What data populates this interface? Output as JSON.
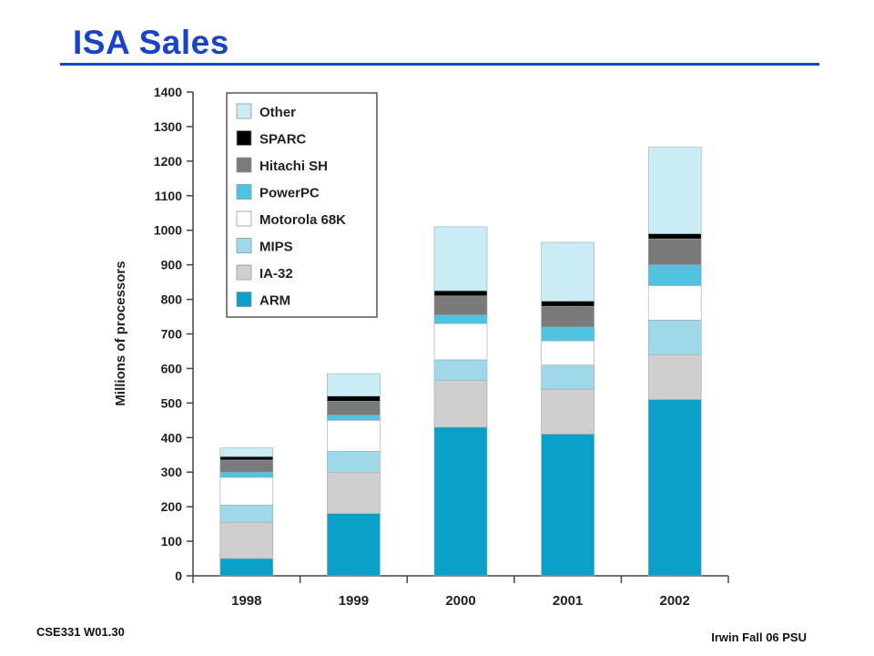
{
  "slide": {
    "title": "ISA Sales",
    "footer_left": "CSE331  W01.30",
    "footer_right": "Irwin Fall 06  PSU"
  },
  "chart_data": {
    "type": "bar",
    "stacked": true,
    "categories": [
      "1998",
      "1999",
      "2000",
      "2001",
      "2002"
    ],
    "ylabel": "Millions of processors",
    "xlabel": "",
    "ylim": [
      0,
      1400
    ],
    "yticks": [
      0,
      100,
      200,
      300,
      400,
      500,
      600,
      700,
      800,
      900,
      1000,
      1100,
      1200,
      1300,
      1400
    ],
    "grid": false,
    "legend_position": "top-left",
    "series": [
      {
        "name": "ARM",
        "color": "#0aa0c8",
        "values": [
          50,
          180,
          430,
          410,
          510
        ]
      },
      {
        "name": "IA-32",
        "color": "#cfcfcf",
        "values": [
          105,
          120,
          135,
          130,
          130
        ]
      },
      {
        "name": "MIPS",
        "color": "#9fd8e8",
        "values": [
          50,
          60,
          60,
          70,
          100
        ]
      },
      {
        "name": "Motorola 68K",
        "color": "#ffffff",
        "values": [
          80,
          90,
          105,
          70,
          100
        ]
      },
      {
        "name": "PowerPC",
        "color": "#4fc3e0",
        "values": [
          15,
          15,
          25,
          40,
          60
        ]
      },
      {
        "name": "Hitachi SH",
        "color": "#7a7a7a",
        "values": [
          35,
          40,
          55,
          60,
          75
        ]
      },
      {
        "name": "SPARC",
        "color": "#000000",
        "values": [
          10,
          15,
          15,
          15,
          15
        ]
      },
      {
        "name": "Other",
        "color": "#c9ecf5",
        "values": [
          25,
          65,
          185,
          170,
          250
        ]
      }
    ]
  }
}
